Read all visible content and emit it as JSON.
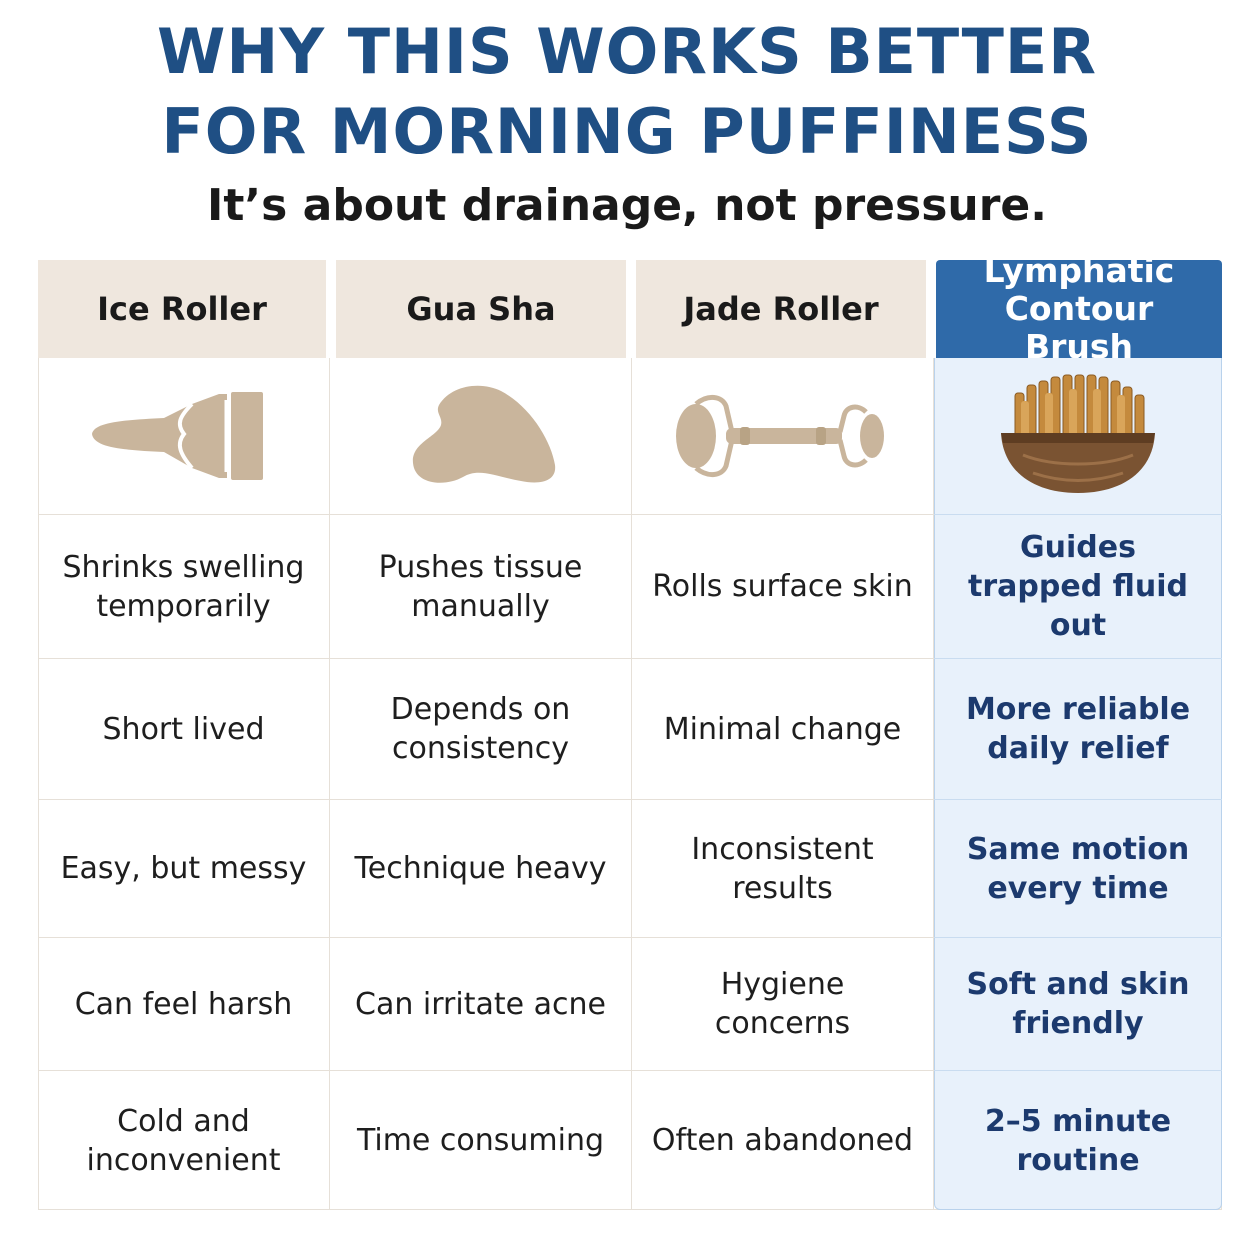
{
  "title_line1": "WHY THIS WORKS BETTER",
  "title_line2": "FOR MORNING PUFFINESS",
  "subtitle": "It’s about drainage, not pressure.",
  "columns": [
    {
      "label": "Ice Roller",
      "icon": "ice-roller-icon"
    },
    {
      "label": "Gua Sha",
      "icon": "gua-sha-icon"
    },
    {
      "label": "Jade Roller",
      "icon": "jade-roller-icon"
    },
    {
      "label": "Lymphatic Contour Brush",
      "icon": "contour-brush-icon",
      "highlighted": true
    }
  ],
  "rows": [
    [
      "Shrinks swelling temporarily",
      "Pushes tissue manually",
      "Rolls surface skin",
      "Guides trapped fluid out"
    ],
    [
      "Short lived",
      "Depends on consistency",
      "Minimal change",
      "More reliable daily relief"
    ],
    [
      "Easy, but messy",
      "Technique heavy",
      "Inconsistent results",
      "Same motion every time"
    ],
    [
      "Can feel harsh",
      "Can irritate acne",
      "Hygiene concerns",
      "Soft and skin friendly"
    ],
    [
      "Cold and inconvenient",
      "Time consuming",
      "Often abandoned",
      "2–5 minute routine"
    ]
  ],
  "colors": {
    "title": "#1f4f84",
    "header_bg": "#efe7de",
    "highlight_header": "#2f6aa9",
    "highlight_col_bg": "#e8f1fb",
    "highlight_text": "#1c3a6e",
    "icon_tan": "#c9b59c"
  }
}
